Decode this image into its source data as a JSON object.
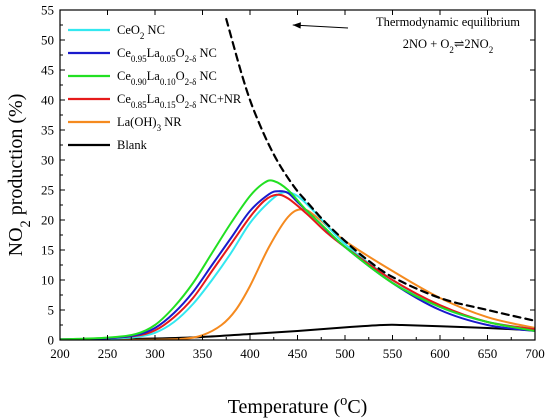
{
  "chart_data": {
    "type": "line",
    "xlabel": {
      "main": "Temperature (",
      "sup": "o",
      "rest": "C)"
    },
    "ylabel": {
      "pre": "NO",
      "sub": "2",
      "post": " production (%)"
    },
    "xlim": [
      200,
      700
    ],
    "ylim": [
      0,
      55
    ],
    "xticks": [
      200,
      250,
      300,
      350,
      400,
      450,
      500,
      550,
      600,
      650,
      700
    ],
    "yticks": [
      0,
      5,
      10,
      15,
      20,
      25,
      30,
      35,
      40,
      45,
      50,
      55
    ],
    "legend_position": "top-left",
    "grid": false,
    "series": [
      {
        "name": [
          {
            "t": "CeO"
          },
          {
            "t": "2",
            "s": "sub"
          },
          {
            "t": " NC"
          }
        ],
        "color": "#33e8f0",
        "dash": "solid",
        "x": [
          200,
          250,
          280,
          300,
          320,
          340,
          360,
          380,
          400,
          420,
          435,
          450,
          470,
          500,
          550,
          600,
          650,
          700
        ],
        "y": [
          0.1,
          0.2,
          0.5,
          1.2,
          3,
          6,
          10,
          14.5,
          19.5,
          23,
          24.6,
          24,
          21,
          16,
          10,
          5.5,
          3,
          1.8
        ]
      },
      {
        "name": [
          {
            "t": "Ce"
          },
          {
            "t": "0.95",
            "s": "sub"
          },
          {
            "t": "La"
          },
          {
            "t": "0.05",
            "s": "sub"
          },
          {
            "t": "O"
          },
          {
            "t": "2-δ",
            "s": "sub"
          },
          {
            "t": " NC"
          }
        ],
        "color": "#1a1acc",
        "dash": "solid",
        "x": [
          200,
          250,
          280,
          300,
          320,
          340,
          360,
          380,
          400,
          420,
          430,
          440,
          450,
          470,
          500,
          550,
          600,
          650,
          700
        ],
        "y": [
          0.1,
          0.3,
          0.8,
          2,
          4.5,
          8,
          12.5,
          17,
          21.5,
          24.3,
          24.8,
          24.5,
          23,
          20,
          15.5,
          9.5,
          5,
          2.5,
          1.5
        ]
      },
      {
        "name": [
          {
            "t": "Ce"
          },
          {
            "t": "0.90",
            "s": "sub"
          },
          {
            "t": "La"
          },
          {
            "t": "0.10",
            "s": "sub"
          },
          {
            "t": "O"
          },
          {
            "t": "2-δ",
            "s": "sub"
          },
          {
            "t": " NC"
          }
        ],
        "color": "#22e022",
        "dash": "solid",
        "x": [
          200,
          250,
          280,
          300,
          320,
          340,
          360,
          380,
          400,
          415,
          425,
          440,
          460,
          480,
          500,
          550,
          600,
          650,
          700
        ],
        "y": [
          0.1,
          0.4,
          1,
          2.5,
          5.5,
          9.5,
          14.5,
          19.5,
          24,
          26.2,
          26.5,
          25,
          21.5,
          18.5,
          15.5,
          9.5,
          5.5,
          3,
          1.5
        ]
      },
      {
        "name": [
          {
            "t": "Ce"
          },
          {
            "t": "0.85",
            "s": "sub"
          },
          {
            "t": "La"
          },
          {
            "t": "0.15",
            "s": "sub"
          },
          {
            "t": "O"
          },
          {
            "t": "2-δ",
            "s": "sub"
          },
          {
            "t": " NC+NR"
          }
        ],
        "color": "#e61a1a",
        "dash": "solid",
        "x": [
          200,
          250,
          280,
          300,
          320,
          340,
          360,
          380,
          400,
          415,
          428,
          440,
          460,
          480,
          500,
          550,
          600,
          650,
          700
        ],
        "y": [
          0.1,
          0.3,
          0.7,
          1.6,
          3.8,
          7,
          11.5,
          16,
          20.5,
          23.2,
          24.2,
          23.6,
          21,
          18,
          15.5,
          10,
          5.8,
          3,
          1.8
        ]
      },
      {
        "name": [
          {
            "t": "La(OH)"
          },
          {
            "t": "3",
            "s": "sub"
          },
          {
            "t": " NR"
          }
        ],
        "color": "#f58a1f",
        "dash": "solid",
        "x": [
          200,
          300,
          330,
          350,
          370,
          385,
          400,
          420,
          440,
          455,
          470,
          500,
          550,
          600,
          650,
          700
        ],
        "y": [
          0,
          0.05,
          0.2,
          0.8,
          2.5,
          5,
          9,
          15.5,
          20.5,
          21.8,
          20.5,
          16.5,
          11.5,
          7,
          3.8,
          2
        ]
      },
      {
        "name": [
          {
            "t": "Blank"
          }
        ],
        "color": "#000000",
        "dash": "solid",
        "x": [
          200,
          250,
          300,
          350,
          400,
          450,
          500,
          540,
          560,
          600,
          650,
          700
        ],
        "y": [
          0.1,
          0.15,
          0.25,
          0.5,
          1,
          1.5,
          2.1,
          2.5,
          2.5,
          2.3,
          2,
          1.6
        ]
      },
      {
        "name": null,
        "color": "#000000",
        "dash": "dashed",
        "x": [
          375,
          390,
          400,
          410,
          420,
          430,
          440,
          450,
          460,
          470,
          480,
          500,
          520,
          550,
          600,
          650,
          700
        ],
        "y": [
          53.5,
          45,
          40,
          36,
          32.5,
          29.5,
          27,
          24.8,
          23,
          21.2,
          19.5,
          16.5,
          13.8,
          10.5,
          7,
          5,
          3.2
        ]
      }
    ],
    "annotation": {
      "title": "Thermodynamic equilibrium",
      "equation": [
        {
          "t": "2NO + O"
        },
        {
          "t": "2",
          "s": "sub"
        },
        {
          "t": "⇌",
          "s": "arrow"
        },
        {
          "t": "2NO"
        },
        {
          "t": "2",
          "s": "sub"
        }
      ],
      "arrow_to": {
        "x": 445,
        "y": 52.5
      }
    }
  }
}
